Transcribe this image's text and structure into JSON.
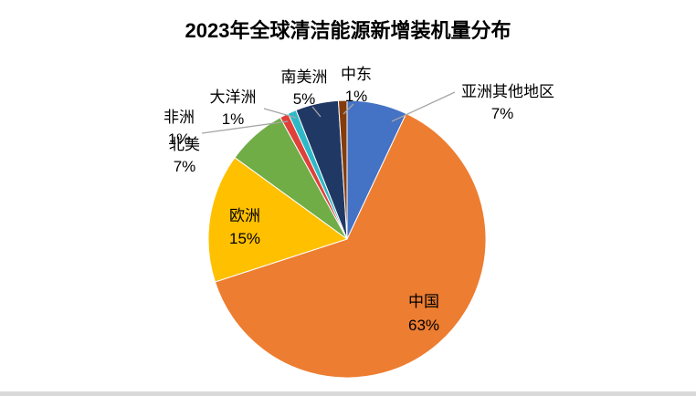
{
  "page": {
    "background_color": "#FFFFFF",
    "bottom_border_color": "#D9D9D9"
  },
  "chart_data": {
    "type": "pie",
    "title": "2023年全球清洁能源新增装机量分布",
    "unit": "%",
    "start_angle_deg": 0,
    "direction": "clockwise",
    "legend": "none",
    "label_color": "#000000",
    "leader_line_color": "#A6A6A6",
    "slices": [
      {
        "label": "亚洲其他地区",
        "value": 7,
        "pct_text": "7%",
        "color": "#4472C4"
      },
      {
        "label": "中国",
        "value": 63,
        "pct_text": "63%",
        "color": "#ED7D31"
      },
      {
        "label": "欧洲",
        "value": 15,
        "pct_text": "15%",
        "color": "#FFC000"
      },
      {
        "label": "北美",
        "value": 7,
        "pct_text": "7%",
        "color": "#70AD47"
      },
      {
        "label": "非洲",
        "value": 1,
        "pct_text": "1%",
        "color": "#E0403A"
      },
      {
        "label": "大洋洲",
        "value": 1,
        "pct_text": "1%",
        "color": "#2FB9C6"
      },
      {
        "label": "南美洲",
        "value": 5,
        "pct_text": "5%",
        "color": "#203864"
      },
      {
        "label": "中东",
        "value": 1,
        "pct_text": "1%",
        "color": "#843C0C"
      }
    ]
  }
}
